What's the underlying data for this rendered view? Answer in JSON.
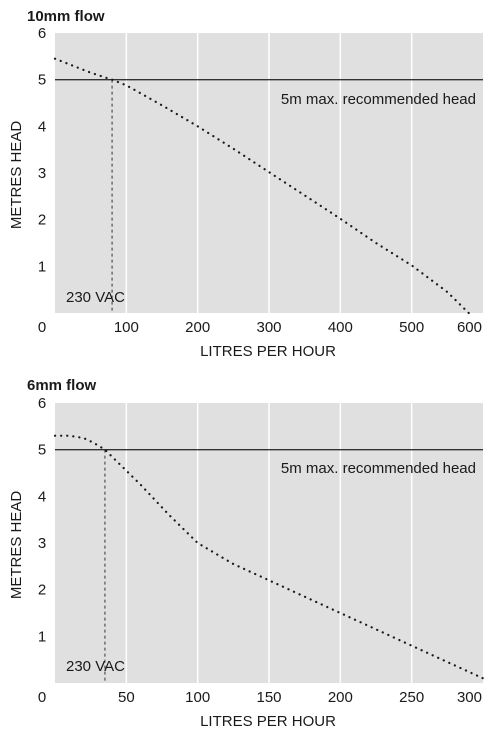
{
  "colors": {
    "plot_background": "#e0e0e0",
    "gridline": "#ffffff",
    "curve": "#1a1a1a",
    "reference_line": "#333333"
  },
  "chart_data": [
    {
      "type": "line",
      "title": "10mm flow",
      "xlabel": "LITRES PER HOUR",
      "ylabel": "METRES HEAD",
      "xlim": [
        0,
        600
      ],
      "ylim": [
        0,
        6
      ],
      "x_ticks": [
        0,
        100,
        200,
        300,
        400,
        500,
        600
      ],
      "y_ticks": [
        1,
        2,
        3,
        4,
        5,
        6
      ],
      "grid": "vertical",
      "series": [
        {
          "style": "dotted",
          "x": [
            0,
            50,
            80,
            100,
            150,
            200,
            250,
            300,
            350,
            400,
            450,
            500,
            550,
            580
          ],
          "y": [
            5.45,
            5.15,
            5.0,
            4.88,
            4.45,
            4.0,
            3.52,
            3.02,
            2.52,
            2.02,
            1.5,
            1.02,
            0.45,
            0.0
          ]
        }
      ],
      "reference_line": {
        "y": 5,
        "label": "5m max. recommended head"
      },
      "marker_line": {
        "x": 80,
        "label": "230 VAC"
      }
    },
    {
      "type": "line",
      "title": "6mm flow",
      "xlabel": "LITRES PER HOUR",
      "ylabel": "METRES HEAD",
      "xlim": [
        0,
        300
      ],
      "ylim": [
        0,
        6
      ],
      "x_ticks": [
        0,
        50,
        100,
        150,
        200,
        250,
        300
      ],
      "y_ticks": [
        1,
        2,
        3,
        4,
        5,
        6
      ],
      "grid": "vertical",
      "series": [
        {
          "style": "dotted",
          "x": [
            0,
            10,
            20,
            27,
            35,
            45,
            60,
            80,
            100,
            125,
            150,
            175,
            200,
            225,
            250,
            275,
            300
          ],
          "y": [
            5.3,
            5.3,
            5.25,
            5.15,
            5.0,
            4.7,
            4.25,
            3.6,
            3.0,
            2.55,
            2.2,
            1.85,
            1.5,
            1.15,
            0.8,
            0.45,
            0.1
          ]
        }
      ],
      "reference_line": {
        "y": 5,
        "label": "5m max. recommended head"
      },
      "marker_line": {
        "x": 35,
        "label": "230 VAC"
      }
    }
  ]
}
